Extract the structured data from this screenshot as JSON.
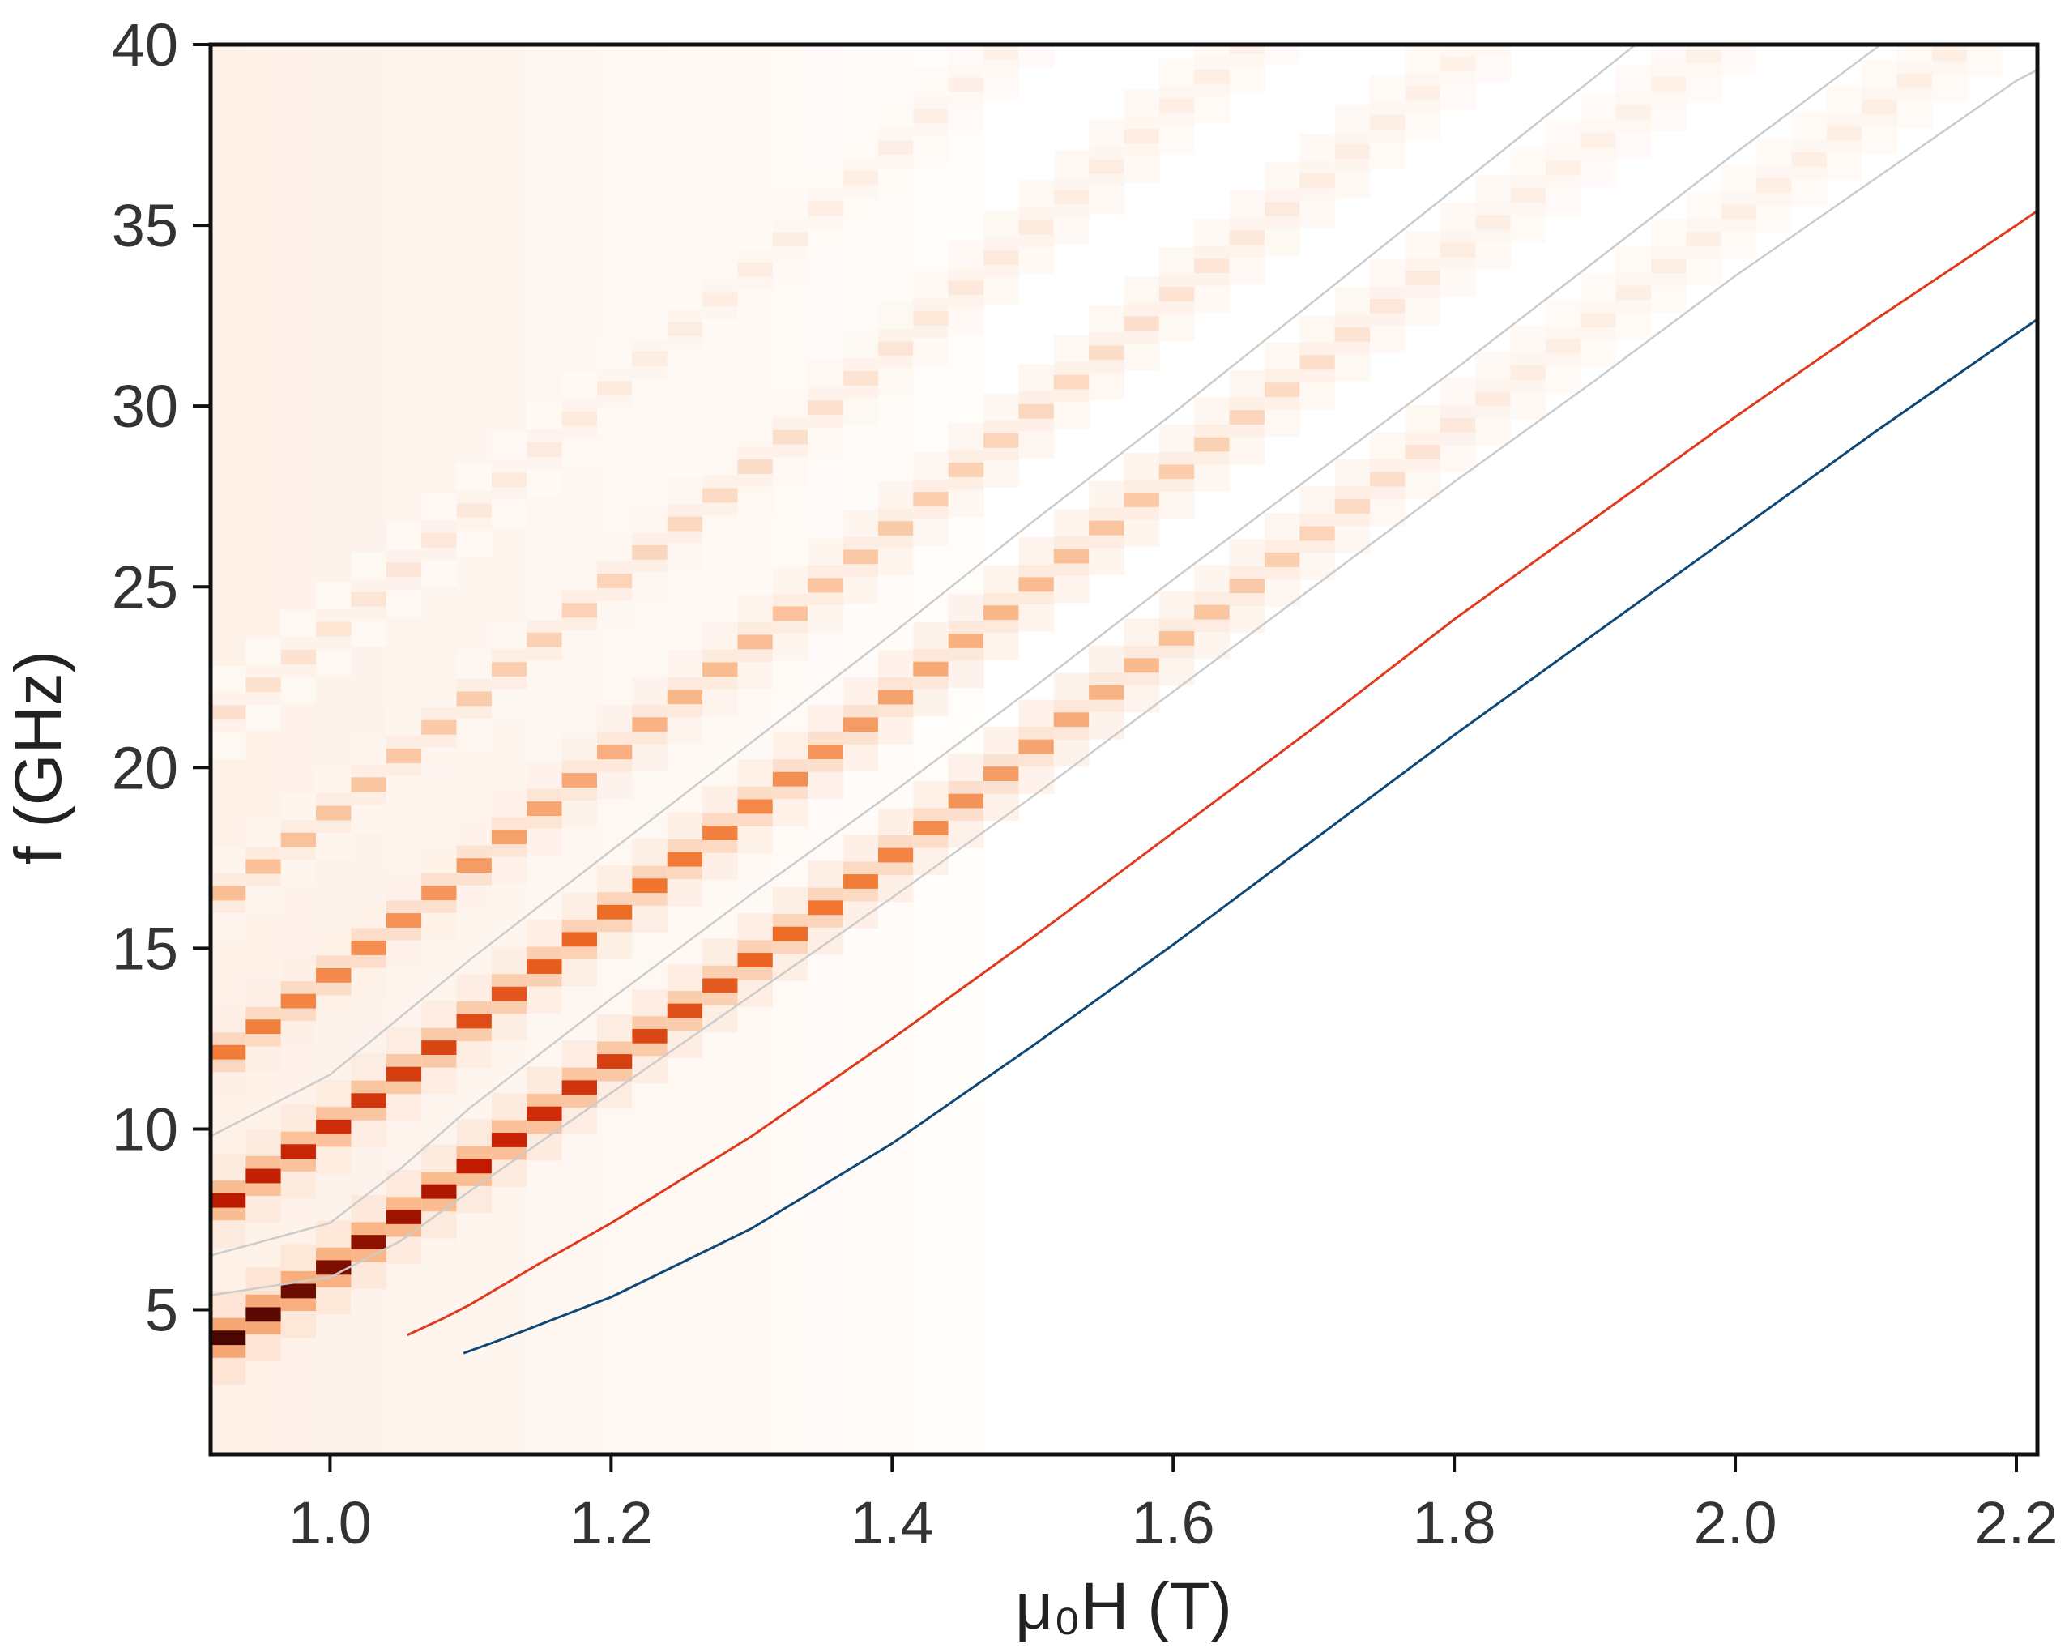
{
  "chart_data": {
    "type": "heatmap",
    "title": "",
    "xlabel": "μ₀H (T)",
    "ylabel": "f (GHz)",
    "xlim": [
      0.915,
      2.215
    ],
    "ylim": [
      1.0,
      40.0
    ],
    "x_ticks": [
      1.0,
      1.2,
      1.4,
      1.6,
      1.8,
      2.0,
      2.2
    ],
    "x_tick_labels": [
      "1.0",
      "1.2",
      "1.4",
      "1.6",
      "1.8",
      "2.0",
      "2.2"
    ],
    "y_ticks": [
      5,
      10,
      15,
      20,
      25,
      30,
      35,
      40
    ],
    "y_tick_labels": [
      "5",
      "10",
      "15",
      "20",
      "25",
      "30",
      "35",
      "40"
    ],
    "grid": false,
    "colormap": [
      "#fffdfb",
      "#fde9dc",
      "#f9b98c",
      "#f07028",
      "#c21a00",
      "#200000"
    ],
    "heatmap": {
      "description_of_bands": "spin-wave resonance modes sampled on discrete field columns",
      "field_step": 0.025,
      "modes": [
        {
          "f_at_start": 3.9,
          "offset_from_kittel_GHz": 0.0,
          "peak_intensity": 1.0
        },
        {
          "f_at_start": 7.7,
          "offset_from_kittel_GHz": 3.8,
          "peak_intensity": 0.85
        },
        {
          "f_at_start": 11.9,
          "offset_from_kittel_GHz": 7.9,
          "peak_intensity": 0.6
        },
        {
          "f_at_start": 16.2,
          "offset_from_kittel_GHz": 12.3,
          "peak_intensity": 0.4
        },
        {
          "f_at_start": 21.2,
          "offset_from_kittel_GHz": 17.3,
          "peak_intensity": 0.25
        }
      ]
    },
    "series": [
      {
        "style": "line",
        "color": "#e03a1e",
        "x": [
          1.055,
          1.08,
          1.1,
          1.15,
          1.2,
          1.3,
          1.4,
          1.5,
          1.6,
          1.7,
          1.8,
          1.9,
          2.0,
          2.1,
          2.2,
          2.215
        ],
        "y": [
          4.3,
          4.75,
          5.15,
          6.3,
          7.4,
          9.8,
          12.5,
          15.3,
          18.2,
          21.1,
          24.1,
          26.9,
          29.7,
          32.4,
          35.0,
          35.4
        ]
      },
      {
        "style": "line",
        "color": "#0e4877",
        "x": [
          1.095,
          1.12,
          1.15,
          1.2,
          1.3,
          1.4,
          1.5,
          1.6,
          1.7,
          1.8,
          1.9,
          2.0,
          2.1,
          2.2,
          2.215
        ],
        "y": [
          3.8,
          4.15,
          4.6,
          5.35,
          7.25,
          9.6,
          12.3,
          15.1,
          18.0,
          20.9,
          23.7,
          26.5,
          29.3,
          32.0,
          32.4
        ]
      },
      {
        "style": "line",
        "color": "#cccccc",
        "x": [
          0.915,
          1.0,
          1.05,
          1.1,
          1.2,
          1.3,
          1.4,
          1.5,
          1.6,
          1.7,
          1.8,
          1.9,
          2.0,
          2.1,
          2.2,
          2.215
        ],
        "y": [
          5.4,
          5.9,
          6.9,
          8.3,
          11.0,
          13.7,
          16.4,
          19.2,
          22.1,
          25.0,
          27.9,
          30.7,
          33.6,
          36.3,
          39.0,
          39.3
        ]
      },
      {
        "style": "line",
        "color": "#cccccc",
        "x": [
          0.915,
          1.0,
          1.05,
          1.1,
          1.2,
          1.3,
          1.4,
          1.5,
          1.6,
          1.7,
          1.8,
          1.9,
          2.0,
          2.1,
          2.2
        ],
        "y": [
          6.5,
          7.4,
          8.9,
          10.6,
          13.6,
          16.5,
          19.3,
          22.2,
          25.2,
          28.1,
          31.0,
          34.0,
          37.0,
          39.9,
          42.8
        ]
      },
      {
        "style": "line",
        "color": "#cccccc",
        "x": [
          0.915,
          1.0,
          1.05,
          1.1,
          1.2,
          1.3,
          1.4,
          1.5,
          1.6,
          1.7,
          1.8,
          1.9,
          2.0,
          2.1,
          2.2
        ],
        "y": [
          9.8,
          11.5,
          13.1,
          14.7,
          17.7,
          20.7,
          23.7,
          26.8,
          29.8,
          32.9,
          36.0,
          39.1,
          42.2,
          45.3,
          48.4
        ]
      }
    ]
  }
}
